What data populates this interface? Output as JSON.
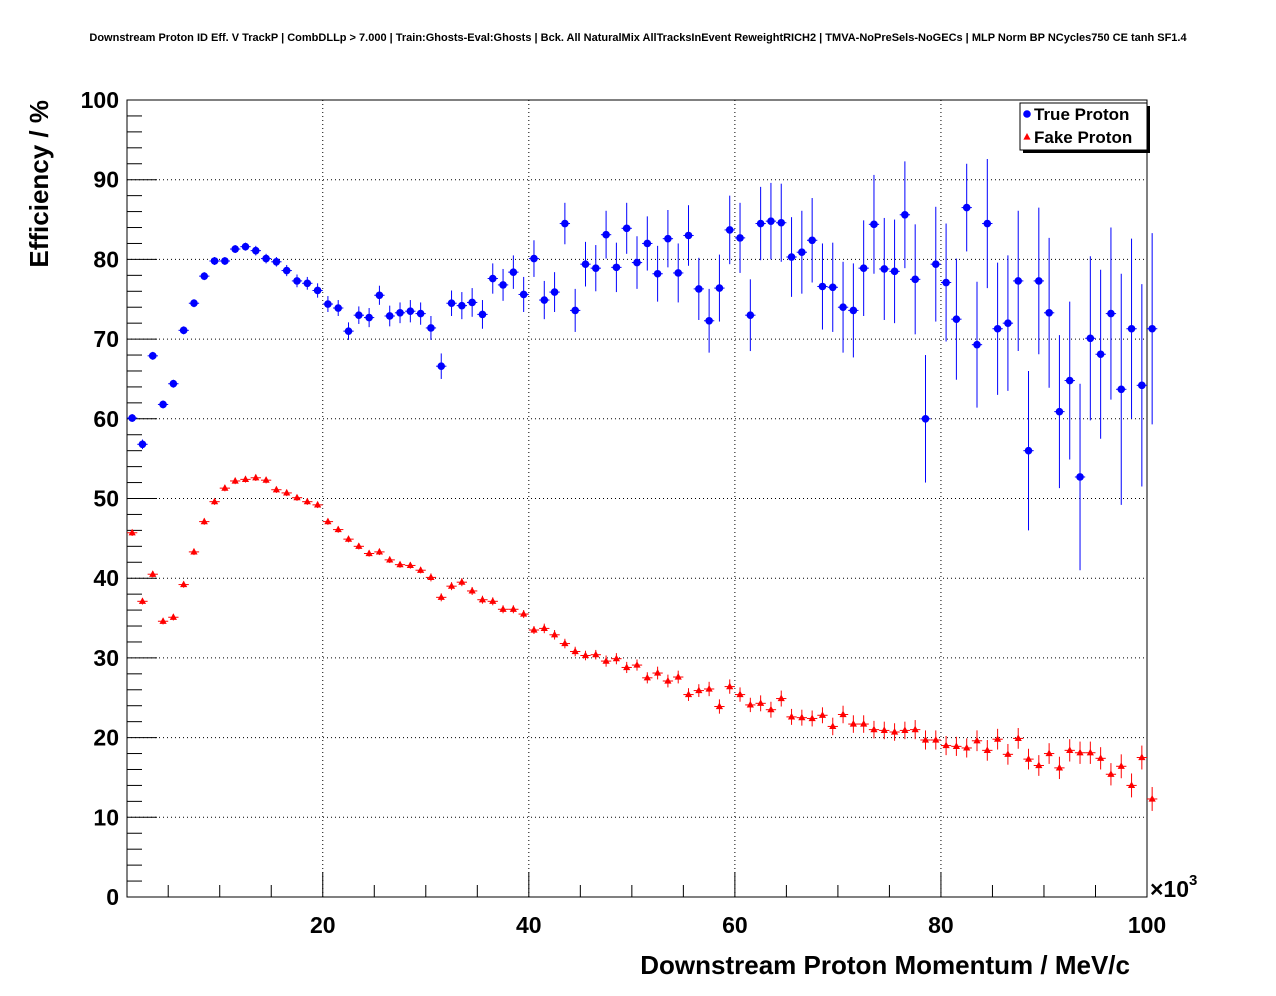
{
  "chart_data": {
    "type": "scatter",
    "title": "Downstream Proton ID Eff. V TrackP | CombDLLp > 7.000 | Train:Ghosts-Eval:Ghosts | Bck. All NaturalMix AllTracksInEvent ReweightRICH2 | TMVA-NoPreSels-NoGECs | MLP Norm BP NCycles750 CE tanh SF1.4",
    "xlabel": "Downstream Proton Momentum / MeV/c",
    "ylabel": "Efficiency / %",
    "x_multiplier": "×10",
    "x_multiplier_exp": "3",
    "xlim": [
      1,
      100
    ],
    "ylim": [
      0,
      100
    ],
    "x_ticks": [
      "20",
      "40",
      "60",
      "80",
      "100"
    ],
    "y_ticks": [
      "0",
      "10",
      "20",
      "30",
      "40",
      "50",
      "60",
      "70",
      "80",
      "90",
      "100"
    ],
    "grid": true,
    "legend_position": "top-right",
    "series": [
      {
        "name": "True Proton",
        "color": "#0000ff",
        "marker": "circle",
        "x": [
          1.5,
          2.5,
          3.5,
          4.5,
          5.5,
          6.5,
          7.5,
          8.5,
          9.5,
          10.5,
          11.5,
          12.5,
          13.5,
          14.5,
          15.5,
          16.5,
          17.5,
          18.5,
          19.5,
          20.5,
          21.5,
          22.5,
          23.5,
          24.5,
          25.5,
          26.5,
          27.5,
          28.5,
          29.5,
          30.5,
          31.5,
          32.5,
          33.5,
          34.5,
          35.5,
          36.5,
          37.5,
          38.5,
          39.5,
          40.5,
          41.5,
          42.5,
          43.5,
          44.5,
          45.5,
          46.5,
          47.5,
          48.5,
          49.5,
          50.5,
          51.5,
          52.5,
          53.5,
          54.5,
          55.5,
          56.5,
          57.5,
          58.5,
          59.5,
          60.5,
          61.5,
          62.5,
          63.5,
          64.5,
          65.5,
          66.5,
          67.5,
          68.5,
          69.5,
          70.5,
          71.5,
          72.5,
          73.5,
          74.5,
          75.5,
          76.5,
          77.5,
          78.5,
          79.5,
          80.5,
          81.5,
          82.5,
          83.5,
          84.5,
          85.5,
          86.5,
          87.5,
          88.5,
          89.5,
          90.5,
          91.5,
          92.5,
          93.5,
          94.5,
          95.5,
          96.5,
          97.5,
          98.5,
          99.5,
          100.5
        ],
        "y": [
          60.1,
          56.8,
          67.9,
          61.8,
          64.4,
          71.1,
          74.5,
          77.9,
          79.8,
          79.8,
          81.3,
          81.6,
          81.1,
          80.1,
          79.7,
          78.6,
          77.3,
          77.0,
          76.1,
          74.4,
          73.9,
          71.0,
          73.0,
          72.7,
          75.5,
          72.9,
          73.3,
          73.5,
          73.2,
          71.4,
          66.6,
          74.5,
          74.2,
          74.6,
          73.1,
          77.6,
          76.8,
          78.4,
          75.6,
          80.1,
          74.9,
          75.9,
          84.5,
          73.6,
          79.4,
          78.9,
          83.1,
          79.0,
          83.9,
          79.6,
          82.0,
          78.2,
          82.6,
          78.3,
          83.0,
          76.3,
          72.3,
          76.4,
          83.7,
          82.7,
          73.0,
          84.5,
          84.8,
          84.6,
          80.3,
          80.9,
          82.4,
          76.6,
          76.5,
          74.0,
          73.6,
          78.9,
          84.4,
          78.8,
          78.5,
          85.6,
          77.5,
          60.0,
          79.4,
          77.1,
          72.5,
          86.5,
          69.3,
          84.5,
          71.3,
          72.0,
          77.3,
          56.0,
          77.3,
          73.3,
          60.9,
          64.8,
          52.7,
          70.1,
          68.1,
          73.2,
          63.7,
          71.3,
          64.2,
          71.3
        ],
        "err": [
          0.5,
          0.6,
          0.5,
          0.5,
          0.5,
          0.5,
          0.5,
          0.5,
          0.5,
          0.5,
          0.5,
          0.5,
          0.6,
          0.6,
          0.6,
          0.7,
          0.8,
          0.8,
          0.9,
          1.0,
          1.0,
          1.1,
          1.1,
          1.2,
          1.2,
          1.3,
          1.3,
          1.4,
          1.4,
          1.5,
          1.6,
          1.6,
          1.7,
          1.8,
          1.8,
          1.9,
          2.0,
          2.1,
          2.2,
          2.3,
          2.4,
          2.5,
          2.6,
          2.7,
          2.8,
          2.9,
          3.0,
          3.1,
          3.2,
          3.3,
          3.4,
          3.5,
          3.6,
          3.7,
          3.8,
          3.9,
          4.0,
          4.2,
          4.3,
          4.4,
          4.5,
          4.6,
          4.8,
          4.9,
          5.0,
          5.2,
          5.3,
          5.4,
          5.6,
          5.7,
          5.9,
          6.0,
          6.2,
          6.4,
          6.5,
          6.7,
          6.9,
          8.0,
          7.2,
          7.4,
          7.6,
          5.5,
          7.9,
          8.1,
          8.3,
          8.5,
          8.8,
          10.0,
          9.2,
          9.4,
          9.6,
          9.9,
          11.7,
          10.3,
          10.6,
          10.8,
          14.5,
          11.3,
          12.7,
          12.0
        ]
      },
      {
        "name": "Fake Proton",
        "color": "#ff0000",
        "marker": "triangle",
        "x": [
          1.5,
          2.5,
          3.5,
          4.5,
          5.5,
          6.5,
          7.5,
          8.5,
          9.5,
          10.5,
          11.5,
          12.5,
          13.5,
          14.5,
          15.5,
          16.5,
          17.5,
          18.5,
          19.5,
          20.5,
          21.5,
          22.5,
          23.5,
          24.5,
          25.5,
          26.5,
          27.5,
          28.5,
          29.5,
          30.5,
          31.5,
          32.5,
          33.5,
          34.5,
          35.5,
          36.5,
          37.5,
          38.5,
          39.5,
          40.5,
          41.5,
          42.5,
          43.5,
          44.5,
          45.5,
          46.5,
          47.5,
          48.5,
          49.5,
          50.5,
          51.5,
          52.5,
          53.5,
          54.5,
          55.5,
          56.5,
          57.5,
          58.5,
          59.5,
          60.5,
          61.5,
          62.5,
          63.5,
          64.5,
          65.5,
          66.5,
          67.5,
          68.5,
          69.5,
          70.5,
          71.5,
          72.5,
          73.5,
          74.5,
          75.5,
          76.5,
          77.5,
          78.5,
          79.5,
          80.5,
          81.5,
          82.5,
          83.5,
          84.5,
          85.5,
          86.5,
          87.5,
          88.5,
          89.5,
          90.5,
          91.5,
          92.5,
          93.5,
          94.5,
          95.5,
          96.5,
          97.5,
          98.5,
          99.5,
          100.5
        ],
        "y": [
          45.7,
          37.1,
          40.5,
          34.6,
          35.1,
          39.2,
          43.3,
          47.1,
          49.6,
          51.3,
          52.2,
          52.4,
          52.6,
          52.3,
          51.1,
          50.7,
          50.1,
          49.6,
          49.2,
          47.1,
          46.1,
          44.9,
          44.0,
          43.1,
          43.3,
          42.3,
          41.7,
          41.6,
          41.0,
          40.1,
          37.6,
          39.0,
          39.5,
          38.4,
          37.3,
          37.1,
          36.1,
          36.1,
          35.5,
          33.5,
          33.7,
          32.9,
          31.8,
          30.8,
          30.3,
          30.4,
          29.6,
          29.9,
          28.8,
          29.1,
          27.5,
          28.1,
          27.1,
          27.6,
          25.4,
          25.9,
          26.1,
          23.9,
          26.4,
          25.4,
          24.1,
          24.3,
          23.5,
          24.9,
          22.6,
          22.5,
          22.4,
          22.8,
          21.4,
          22.9,
          21.7,
          21.7,
          21.0,
          20.9,
          20.7,
          20.9,
          21.0,
          19.7,
          19.7,
          19.0,
          18.9,
          18.7,
          19.6,
          18.4,
          19.8,
          17.9,
          19.9,
          17.3,
          16.5,
          18.0,
          16.2,
          18.4,
          18.1,
          18.1,
          17.4,
          15.4,
          16.4,
          14.0,
          17.5,
          12.3
        ],
        "err": [
          0.4,
          0.4,
          0.4,
          0.4,
          0.4,
          0.4,
          0.4,
          0.4,
          0.4,
          0.4,
          0.4,
          0.4,
          0.4,
          0.4,
          0.4,
          0.4,
          0.4,
          0.4,
          0.4,
          0.4,
          0.4,
          0.4,
          0.4,
          0.4,
          0.4,
          0.4,
          0.4,
          0.4,
          0.4,
          0.5,
          0.5,
          0.5,
          0.5,
          0.5,
          0.5,
          0.5,
          0.5,
          0.5,
          0.5,
          0.5,
          0.6,
          0.6,
          0.6,
          0.6,
          0.6,
          0.6,
          0.7,
          0.7,
          0.7,
          0.7,
          0.7,
          0.8,
          0.8,
          0.8,
          0.8,
          0.8,
          0.9,
          0.9,
          0.9,
          0.9,
          0.9,
          1.0,
          1.0,
          1.0,
          1.0,
          1.0,
          1.0,
          1.0,
          1.1,
          1.1,
          1.1,
          1.1,
          1.1,
          1.1,
          1.1,
          1.1,
          1.2,
          1.2,
          1.2,
          1.2,
          1.2,
          1.2,
          1.3,
          1.3,
          1.3,
          1.3,
          1.3,
          1.3,
          1.3,
          1.3,
          1.4,
          1.4,
          1.4,
          1.4,
          1.4,
          1.4,
          1.5,
          1.5,
          1.5,
          1.5
        ]
      }
    ]
  }
}
